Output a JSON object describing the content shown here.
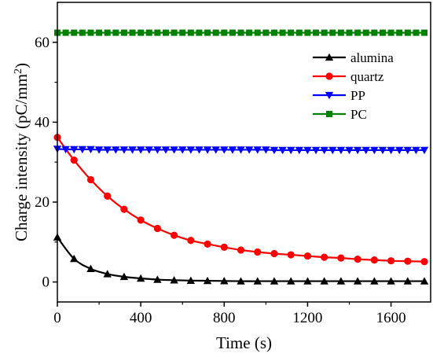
{
  "chart_data": {
    "type": "line",
    "title": "",
    "xlabel": "Time (s)",
    "ylabel_main": "Charge intensity (pC/mm",
    "ylabel_sup": "2",
    "ylabel_tail": ")",
    "xlim": [
      0,
      1790
    ],
    "ylim": [
      -5,
      70
    ],
    "xticks": [
      0,
      400,
      800,
      1200,
      1600
    ],
    "yticks": [
      0,
      20,
      40,
      60
    ],
    "xtick_labels": [
      "0",
      "400",
      "800",
      "1200",
      "1600"
    ],
    "ytick_labels": [
      "0",
      "20",
      "40",
      "60"
    ],
    "legend_position": "top-right",
    "series": [
      {
        "name": "alumina",
        "color": "#000000",
        "marker": "triangle-up",
        "x": [
          0,
          80,
          160,
          240,
          320,
          400,
          480,
          560,
          640,
          720,
          800,
          880,
          960,
          1040,
          1120,
          1200,
          1280,
          1360,
          1440,
          1520,
          1600,
          1680,
          1760
        ],
        "y": [
          11.2,
          5.8,
          3.3,
          2.0,
          1.3,
          0.9,
          0.6,
          0.45,
          0.35,
          0.3,
          0.25,
          0.2,
          0.2,
          0.2,
          0.2,
          0.2,
          0.2,
          0.2,
          0.2,
          0.2,
          0.2,
          0.2,
          0.2
        ]
      },
      {
        "name": "quartz",
        "color": "#ff0000",
        "marker": "circle",
        "x": [
          0,
          80,
          160,
          240,
          320,
          400,
          480,
          560,
          640,
          720,
          800,
          880,
          960,
          1040,
          1120,
          1200,
          1280,
          1360,
          1440,
          1520,
          1600,
          1680,
          1760
        ],
        "y": [
          36.2,
          30.5,
          25.6,
          21.5,
          18.2,
          15.5,
          13.4,
          11.7,
          10.4,
          9.5,
          8.7,
          8.0,
          7.5,
          7.1,
          6.8,
          6.5,
          6.2,
          6.0,
          5.7,
          5.5,
          5.3,
          5.2,
          5.1
        ]
      },
      {
        "name": "PP",
        "color": "#0000ff",
        "marker": "triangle-down",
        "x": [
          0,
          40,
          80,
          120,
          160,
          200,
          240,
          280,
          320,
          360,
          400,
          440,
          480,
          520,
          560,
          600,
          640,
          680,
          720,
          760,
          800,
          840,
          880,
          920,
          960,
          1000,
          1040,
          1080,
          1120,
          1160,
          1200,
          1240,
          1280,
          1320,
          1360,
          1400,
          1440,
          1480,
          1520,
          1560,
          1600,
          1640,
          1680,
          1720,
          1760
        ],
        "y": [
          33.3,
          33.2,
          33.2,
          33.2,
          33.2,
          33.1,
          33.1,
          33.1,
          33.1,
          33.1,
          33.1,
          33.1,
          33.1,
          33.1,
          33.1,
          33.1,
          33.1,
          33.1,
          33.1,
          33.1,
          33.1,
          33.1,
          33.1,
          33.1,
          33.1,
          33.1,
          33.0,
          33.0,
          33.0,
          33.0,
          33.0,
          33.0,
          33.0,
          33.0,
          33.0,
          33.0,
          33.0,
          33.0,
          33.0,
          33.0,
          33.0,
          33.0,
          33.0,
          33.0,
          33.0
        ]
      },
      {
        "name": "PC",
        "color": "#008000",
        "marker": "square",
        "x": [
          0,
          40,
          80,
          120,
          160,
          200,
          240,
          280,
          320,
          360,
          400,
          440,
          480,
          520,
          560,
          600,
          640,
          680,
          720,
          760,
          800,
          840,
          880,
          920,
          960,
          1000,
          1040,
          1080,
          1120,
          1160,
          1200,
          1240,
          1280,
          1320,
          1360,
          1400,
          1440,
          1480,
          1520,
          1560,
          1600,
          1640,
          1680,
          1720,
          1760
        ],
        "y": [
          62.4,
          62.4,
          62.4,
          62.4,
          62.4,
          62.4,
          62.4,
          62.4,
          62.4,
          62.4,
          62.4,
          62.4,
          62.4,
          62.4,
          62.4,
          62.4,
          62.4,
          62.4,
          62.4,
          62.4,
          62.4,
          62.4,
          62.4,
          62.4,
          62.4,
          62.4,
          62.4,
          62.4,
          62.4,
          62.4,
          62.4,
          62.4,
          62.4,
          62.4,
          62.4,
          62.4,
          62.4,
          62.4,
          62.4,
          62.4,
          62.4,
          62.4,
          62.4,
          62.4,
          62.4
        ]
      }
    ]
  }
}
